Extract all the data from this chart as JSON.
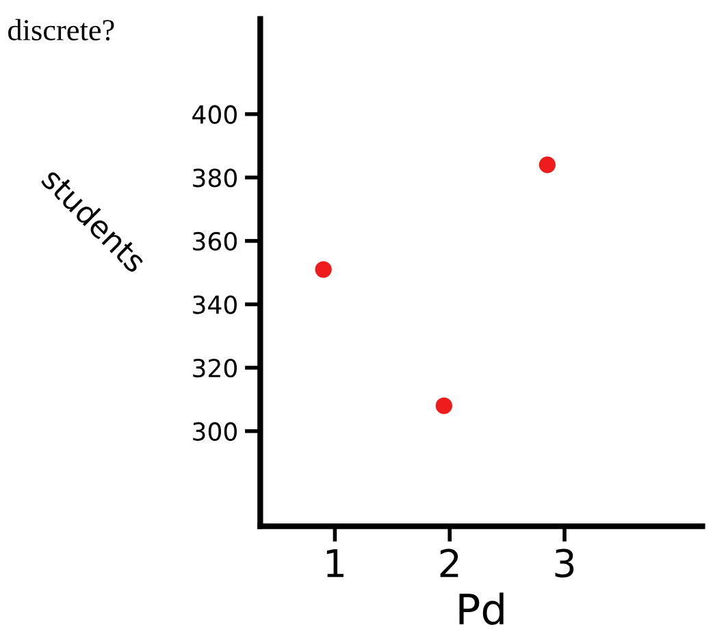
{
  "chart_data": {
    "type": "scatter",
    "title": "discrete?",
    "xlabel": "Pd",
    "ylabel": "students",
    "x": [
      0.9,
      1.95,
      2.85
    ],
    "series": [
      {
        "color": "#ee1c1c",
        "values": [
          351,
          308,
          384
        ]
      }
    ],
    "xlim": [
      0.35,
      4.2
    ],
    "xticks": [
      1,
      2,
      3
    ],
    "ylim": [
      270,
      430
    ],
    "yticks": [
      300,
      320,
      340,
      360,
      380,
      400
    ],
    "marker": "circle",
    "grid": false,
    "legend": false
  }
}
